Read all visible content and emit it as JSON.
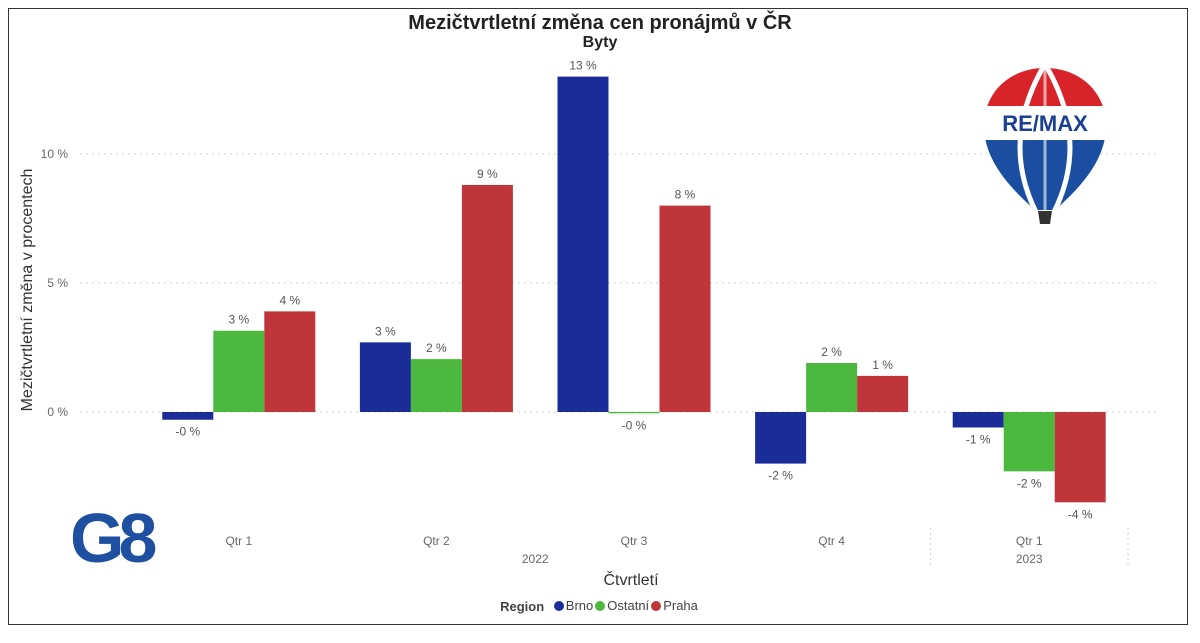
{
  "chart_data": {
    "type": "bar",
    "title": "Mezičtvrtletní změna cen pronájmů v ČR",
    "subtitle": "Byty",
    "xlabel": "Čtvrtletí",
    "ylabel": "Mezičtvrtletní změna v procentech",
    "ylim": [
      -4,
      13.5
    ],
    "yticks": [
      0,
      5,
      10
    ],
    "ytick_labels": [
      "0 %",
      "5 %",
      "10 %"
    ],
    "grid": true,
    "legend_title": "Region",
    "legend_position": "bottom",
    "categories": [
      "Qtr 1",
      "Qtr 2",
      "Qtr 3",
      "Qtr 4",
      "Qtr 1"
    ],
    "category_years": [
      {
        "label": "2022",
        "from": 0,
        "to": 3
      },
      {
        "label": "2023",
        "from": 4,
        "to": 4
      }
    ],
    "series": [
      {
        "name": "Brno",
        "color": "#1a2b9a",
        "values": [
          -0.3,
          2.7,
          13.0,
          -2.0,
          -0.6
        ],
        "labels": [
          "-0 %",
          "3 %",
          "13 %",
          "-2 %",
          "-1 %"
        ]
      },
      {
        "name": "Ostatní",
        "color": "#4cb93e",
        "values": [
          3.15,
          2.05,
          -0.05,
          1.9,
          -2.3
        ],
        "labels": [
          "3 %",
          "2 %",
          "-0 %",
          "2 %",
          "-2 %"
        ]
      },
      {
        "name": "Praha",
        "color": "#c0353a",
        "values": [
          3.9,
          8.8,
          8.0,
          1.4,
          -3.5
        ],
        "labels": [
          "4 %",
          "9 %",
          "8 %",
          "1 %",
          "-4 %"
        ]
      }
    ]
  },
  "logos": {
    "remax": "RE/MAX",
    "g8": "G8"
  }
}
